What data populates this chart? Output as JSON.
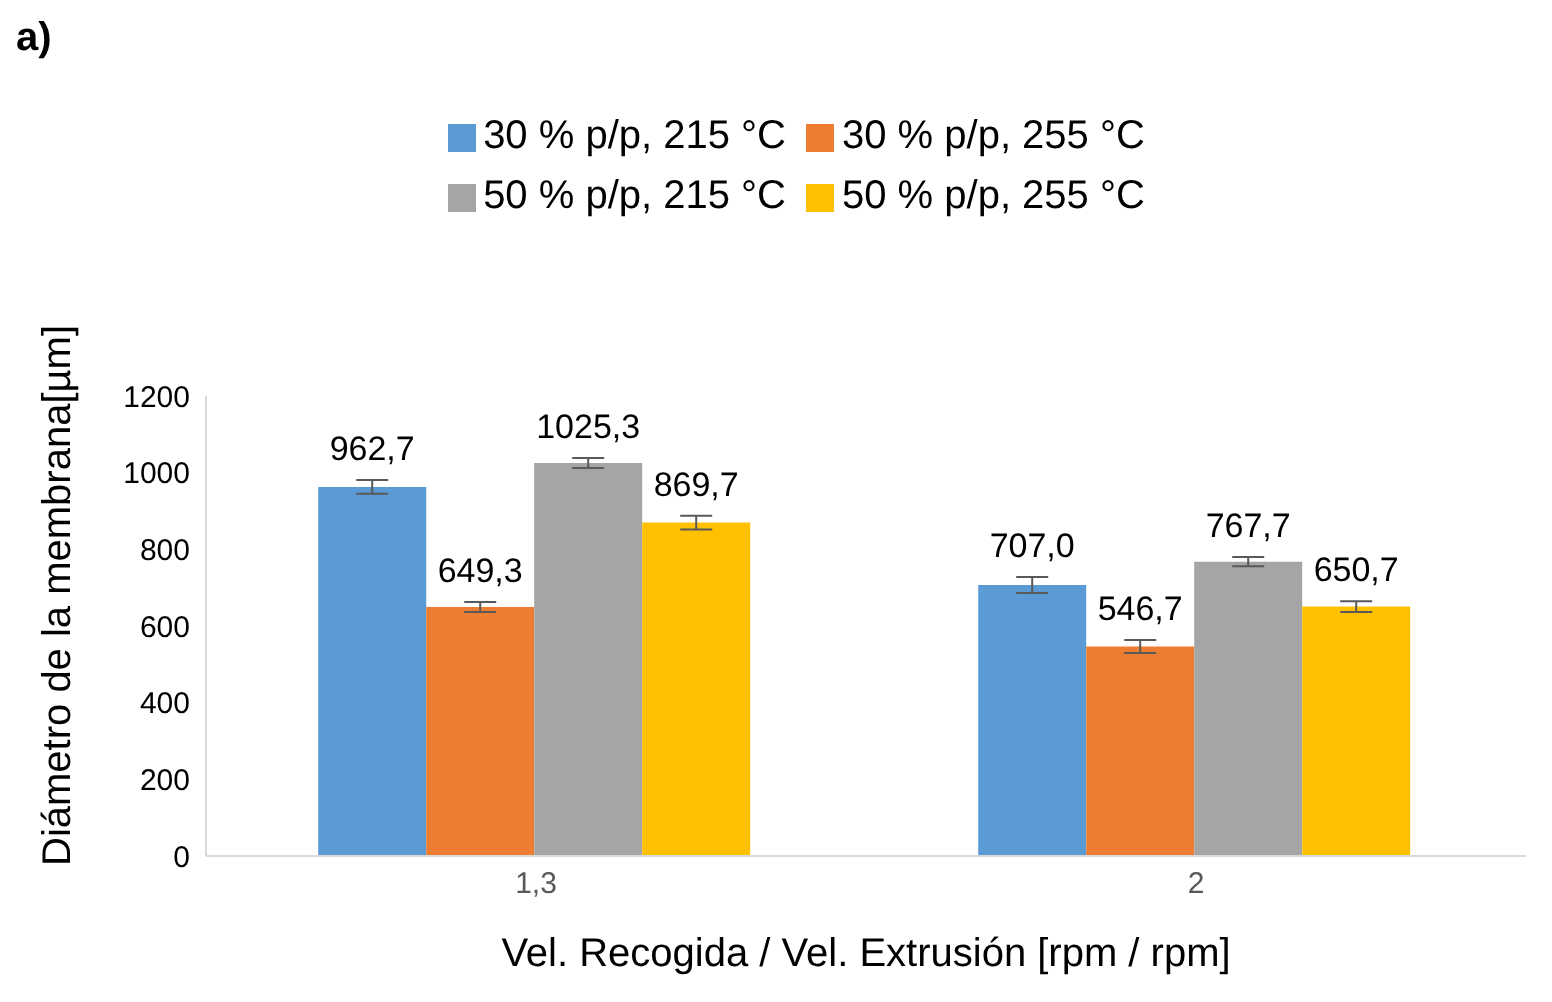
{
  "chart_data": {
    "type": "bar",
    "title": "a)",
    "xlabel": "Vel. Recogida / Vel. Extrusión [rpm / rpm]",
    "ylabel": "Diámetro de la membrana[µm]",
    "categories": [
      "1,3",
      "2"
    ],
    "series": [
      {
        "name": "30 % p/p, 215 °C",
        "color": "#5b9bd5",
        "values": [
          962.7,
          707.0
        ],
        "errors": [
          18,
          21
        ],
        "value_labels": [
          "962,7",
          "707,0"
        ]
      },
      {
        "name": "30 % p/p, 255 °C",
        "color": "#ed7d31",
        "values": [
          649.3,
          546.7
        ],
        "errors": [
          13,
          17
        ],
        "value_labels": [
          "649,3",
          "546,7"
        ]
      },
      {
        "name": "50 % p/p, 215 °C",
        "color": "#a5a5a5",
        "values": [
          1025.3,
          767.7
        ],
        "errors": [
          13,
          12
        ],
        "value_labels": [
          "1025,3",
          "767,7"
        ]
      },
      {
        "name": "50 % p/p, 255 °C",
        "color": "#ffc000",
        "values": [
          869.7,
          650.7
        ],
        "errors": [
          18,
          14
        ],
        "value_labels": [
          "869,7",
          "650,7"
        ]
      }
    ],
    "ylim": [
      0,
      1200
    ],
    "yticks": [
      0,
      200,
      400,
      600,
      800,
      1000,
      1200
    ],
    "grid": false,
    "legend": "top"
  }
}
